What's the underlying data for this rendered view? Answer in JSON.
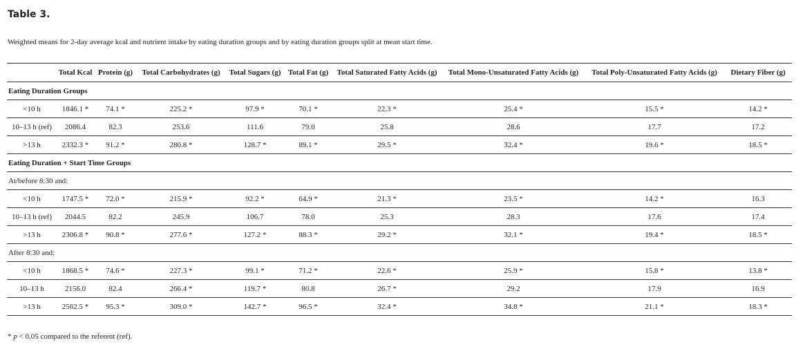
{
  "title": "Table 3.",
  "caption": "Weighted means for 2-day average kcal and nutrient intake by eating duration groups and by eating duration groups split at mean start time.",
  "table": {
    "headers": [
      "Total Kcal",
      "Protein (g)",
      "Total Carbohydrates (g)",
      "Total Sugars (g)",
      "Total Fat (g)",
      "Total Saturated Fatty Acids (g)",
      "Total Mono-Unsaturated Fatty Acids (g)",
      "Total Poly-Unsaturated Fatty Acids (g)",
      "Dietary Fiber (g)"
    ],
    "rows": [
      {
        "section": "Eating Duration Groups",
        "bold": true
      },
      {
        "label": "<10 h",
        "cells": [
          "1846.1 *",
          "74.1 *",
          "225.2 *",
          "97.9 *",
          "70.1 *",
          "22.3 *",
          "25.4 *",
          "15.5 *",
          "14.2 *"
        ]
      },
      {
        "label": "10–13 h (ref)",
        "cells": [
          "2086.4",
          "82.3",
          "253.6",
          "111.6",
          "79.0",
          "25.8",
          "28.6",
          "17.7",
          "17.2"
        ]
      },
      {
        "label": ">13 h",
        "cells": [
          "2332.3 *",
          "91.2 *",
          "280.8 *",
          "128.7 *",
          "89.1 *",
          "29.5 *",
          "32.4 *",
          "19.6 *",
          "18.5 *"
        ]
      },
      {
        "section": "Eating Duration + Start Time Groups",
        "bold": true
      },
      {
        "section": "At/before 8:30 and:",
        "bold": false
      },
      {
        "label": "<10 h",
        "cells": [
          "1747.5 *",
          "72.0 *",
          "215.9 *",
          "92.2 *",
          "64.9 *",
          "21.3 *",
          "23.5 *",
          "14.2 *",
          "16.3"
        ]
      },
      {
        "label": "10–13 h (ref)",
        "cells": [
          "2044.5",
          "82.2",
          "245.9",
          "106.7",
          "78.0",
          "25.3",
          "28.3",
          "17.6",
          "17.4"
        ]
      },
      {
        "label": ">13 h",
        "cells": [
          "2306.8 *",
          "90.8 *",
          "277.6 *",
          "127.2 *",
          "88.3 *",
          "29.2 *",
          "32.1 *",
          "19.4 *",
          "18.5 *"
        ]
      },
      {
        "section": "After 8:30 and:",
        "bold": false
      },
      {
        "label": "<10 h",
        "cells": [
          "1868.5 *",
          "74.6 *",
          "227.3 *",
          "99.1 *",
          "71.2 *",
          "22.6 *",
          "25.9 *",
          "15.8 *",
          "13.8 *"
        ]
      },
      {
        "label": "10–13 h",
        "cells": [
          "2156.0",
          "82.4",
          "266.4 *",
          "119.7 *",
          "80.8",
          "26.7 *",
          "29.2",
          "17.9",
          "16.9"
        ]
      },
      {
        "label": ">13 h",
        "cells": [
          "2562.5 *",
          "95.3 *",
          "309.0 *",
          "142.7 *",
          "96.5 *",
          "32.4 *",
          "34.8 *",
          "21.1 *",
          "18.3 *"
        ]
      }
    ]
  },
  "footnote": {
    "marker": "*",
    "italic": "p",
    "text": "< 0.05 compared to the referent (ref)."
  }
}
